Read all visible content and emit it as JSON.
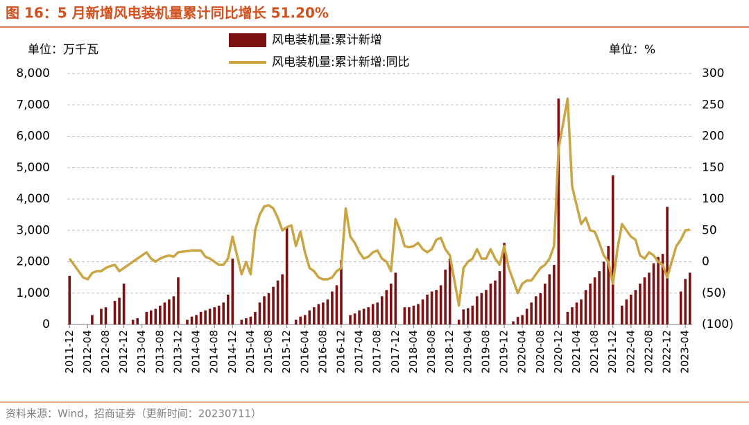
{
  "header": {
    "title": "图 16：5 月新增风电装机量累计同比增长 51.20%"
  },
  "footer": {
    "source": "资料来源：Wind，招商证券（更新时间：20230711）"
  },
  "chart_data": {
    "type": "bar_line",
    "y_unit": "单位：万千瓦",
    "y2_unit": "单位：%",
    "categories": [
      "2011-12",
      null,
      null,
      null,
      "2012-04",
      null,
      null,
      null,
      "2012-08",
      null,
      null,
      null,
      "2012-12",
      null,
      null,
      null,
      "2013-04",
      null,
      null,
      null,
      "2013-08",
      null,
      null,
      null,
      "2013-12",
      null,
      null,
      null,
      "2014-04",
      null,
      null,
      null,
      "2014-08",
      null,
      null,
      null,
      "2014-12",
      null,
      null,
      null,
      "2015-04",
      null,
      null,
      null,
      "2015-08",
      null,
      null,
      null,
      "2015-12",
      null,
      null,
      null,
      "2016-04",
      null,
      null,
      null,
      "2016-08",
      null,
      null,
      null,
      "2016-12",
      null,
      null,
      null,
      "2017-04",
      null,
      null,
      null,
      "2017-08",
      null,
      null,
      null,
      "2017-12",
      null,
      null,
      null,
      "2018-04",
      null,
      null,
      null,
      "2018-08",
      null,
      null,
      null,
      "2018-12",
      null,
      null,
      null,
      "2019-04",
      null,
      null,
      null,
      "2019-08",
      null,
      null,
      null,
      "2019-12",
      null,
      null,
      null,
      "2020-04",
      null,
      null,
      null,
      "2020-08",
      null,
      null,
      null,
      "2020-12",
      null,
      null,
      null,
      "2021-04",
      null,
      null,
      null,
      "2021-08",
      null,
      null,
      null,
      "2021-12",
      null,
      null,
      null,
      "2022-04",
      null,
      null,
      null,
      "2022-08",
      null,
      null,
      null,
      "2022-12",
      null,
      null,
      null,
      "2023-04",
      null
    ],
    "series": [
      {
        "name": "风电装机量:累计新增",
        "color": "#7b1113",
        "kind": "bar",
        "axis": "y",
        "values": [
          1550,
          null,
          null,
          null,
          null,
          300,
          null,
          500,
          550,
          null,
          750,
          850,
          1300,
          null,
          150,
          200,
          null,
          400,
          450,
          500,
          600,
          700,
          800,
          900,
          1500,
          null,
          150,
          250,
          300,
          400,
          450,
          500,
          550,
          600,
          700,
          950,
          2100,
          null,
          150,
          200,
          250,
          400,
          700,
          900,
          1000,
          1200,
          1400,
          1600,
          3100,
          null,
          150,
          250,
          300,
          450,
          550,
          650,
          700,
          800,
          1050,
          1250,
          2050,
          null,
          300,
          350,
          450,
          500,
          550,
          650,
          700,
          900,
          1100,
          1300,
          1650,
          null,
          550,
          550,
          600,
          650,
          800,
          950,
          1050,
          1100,
          1250,
          1750,
          2100,
          null,
          150,
          480,
          520,
          600,
          900,
          1000,
          1100,
          1300,
          1400,
          1700,
          2600,
          null,
          100,
          240,
          300,
          500,
          700,
          900,
          1000,
          1300,
          1600,
          1900,
          7200,
          null,
          400,
          550,
          700,
          800,
          1100,
          1300,
          1500,
          1700,
          2000,
          2500,
          4750,
          null,
          600,
          800,
          950,
          1100,
          1300,
          1500,
          1650,
          1950,
          2150,
          2250,
          3750,
          null,
          null,
          1050,
          1450,
          1650
        ]
      },
      {
        "name": "风电装机量:累计新增:同比",
        "color": "#c9a544",
        "kind": "line",
        "axis": "y2",
        "values": [
          5,
          -5,
          -15,
          -25,
          -28,
          -18,
          -15,
          -15,
          -10,
          -7,
          -5,
          -15,
          -10,
          -5,
          0,
          5,
          10,
          15,
          5,
          0,
          5,
          8,
          10,
          8,
          15,
          16,
          17,
          18,
          18,
          18,
          8,
          5,
          0,
          -5,
          -5,
          5,
          40,
          10,
          -20,
          0,
          -20,
          50,
          75,
          88,
          90,
          85,
          70,
          50,
          55,
          58,
          25,
          48,
          15,
          -10,
          -15,
          -25,
          -28,
          -28,
          -25,
          -15,
          -10,
          85,
          40,
          30,
          15,
          5,
          8,
          15,
          18,
          5,
          0,
          -15,
          68,
          50,
          25,
          23,
          25,
          30,
          20,
          15,
          20,
          35,
          38,
          20,
          10,
          -30,
          -70,
          -10,
          0,
          5,
          20,
          5,
          5,
          20,
          5,
          -5,
          25,
          -10,
          -30,
          -50,
          -35,
          -30,
          -30,
          -20,
          -10,
          -5,
          5,
          25,
          180,
          220,
          260,
          120,
          90,
          60,
          70,
          50,
          48,
          30,
          10,
          0,
          -35,
          20,
          60,
          50,
          40,
          35,
          10,
          5,
          15,
          10,
          0,
          -5,
          -25,
          0,
          25,
          35,
          50,
          51.2
        ]
      }
    ],
    "ylim": [
      0,
      8000
    ],
    "yticks": [
      0,
      {
        "value": 1000,
        "label": "1,000"
      },
      {
        "value": 2000,
        "label": "2,000"
      },
      {
        "value": 3000,
        "label": "3,000"
      },
      {
        "value": 4000,
        "label": "4,000"
      },
      {
        "value": 5000,
        "label": "5,000"
      },
      {
        "value": 6000,
        "label": "6,000"
      },
      {
        "value": 7000,
        "label": "7,000"
      },
      {
        "value": 8000,
        "label": "8,000"
      }
    ],
    "y2lim": [
      -100,
      300
    ],
    "y2ticks": [
      {
        "value": -100,
        "label": "(100)"
      },
      {
        "value": -50,
        "label": "(50)"
      },
      0,
      50,
      100,
      150,
      200,
      250,
      300
    ],
    "y2_negative_label_color": "#ff0000",
    "grid": true
  }
}
